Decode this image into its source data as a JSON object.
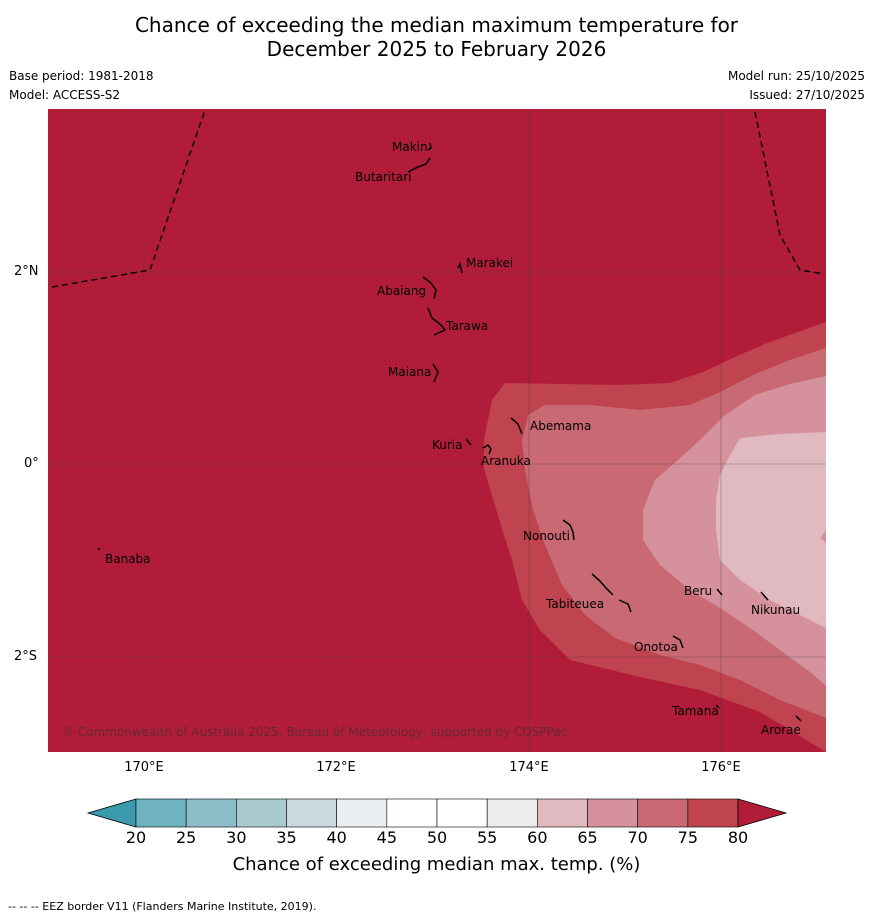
{
  "title_line1": "Chance of exceeding the median maximum temperature for",
  "title_line2": "December 2025 to February 2026",
  "base_period": "Base period: 1981-2018",
  "model": "Model: ACCESS-S2",
  "model_run": "Model run: 25/10/2025",
  "issued": "Issued: 27/10/2025",
  "copyright": "© Commonwealth of Australia 2025, Bureau of Meteorology, supported by COSPPac",
  "lat_labels": [
    "2°N",
    "0°",
    "2°S"
  ],
  "lon_labels": [
    "170°E",
    "172°E",
    "174°E",
    "176°E"
  ],
  "islands": [
    "Makin",
    "Butaritari",
    "Marakei",
    "Abaiang",
    "Tarawa",
    "Maiana",
    "Abemama",
    "Kuria",
    "Aranuka",
    "Nonouti",
    "Banaba",
    "Tabiteuea",
    "Beru",
    "Nikunau",
    "Onotoa",
    "Tamana",
    "Arorae"
  ],
  "colorbar": {
    "ticks": [
      "20",
      "25",
      "30",
      "35",
      "40",
      "45",
      "50",
      "55",
      "60",
      "65",
      "70",
      "75",
      "80"
    ],
    "colors": [
      "#6fb2c0",
      "#8dbdc9",
      "#a9cad1",
      "#cbdade",
      "#eaf0f2",
      "#ffffff",
      "#ffffff",
      "#ececec",
      "#e1b9c0",
      "#d6929c",
      "#c86973",
      "#c0444f"
    ],
    "low_color": "#3a9aab",
    "high_color": "#b11d39",
    "title": "Chance of exceeding median max. temp. (%)"
  },
  "eez_note": "--  --  -- EEZ border V11 (Flanders Marine Institute, 2019)."
}
